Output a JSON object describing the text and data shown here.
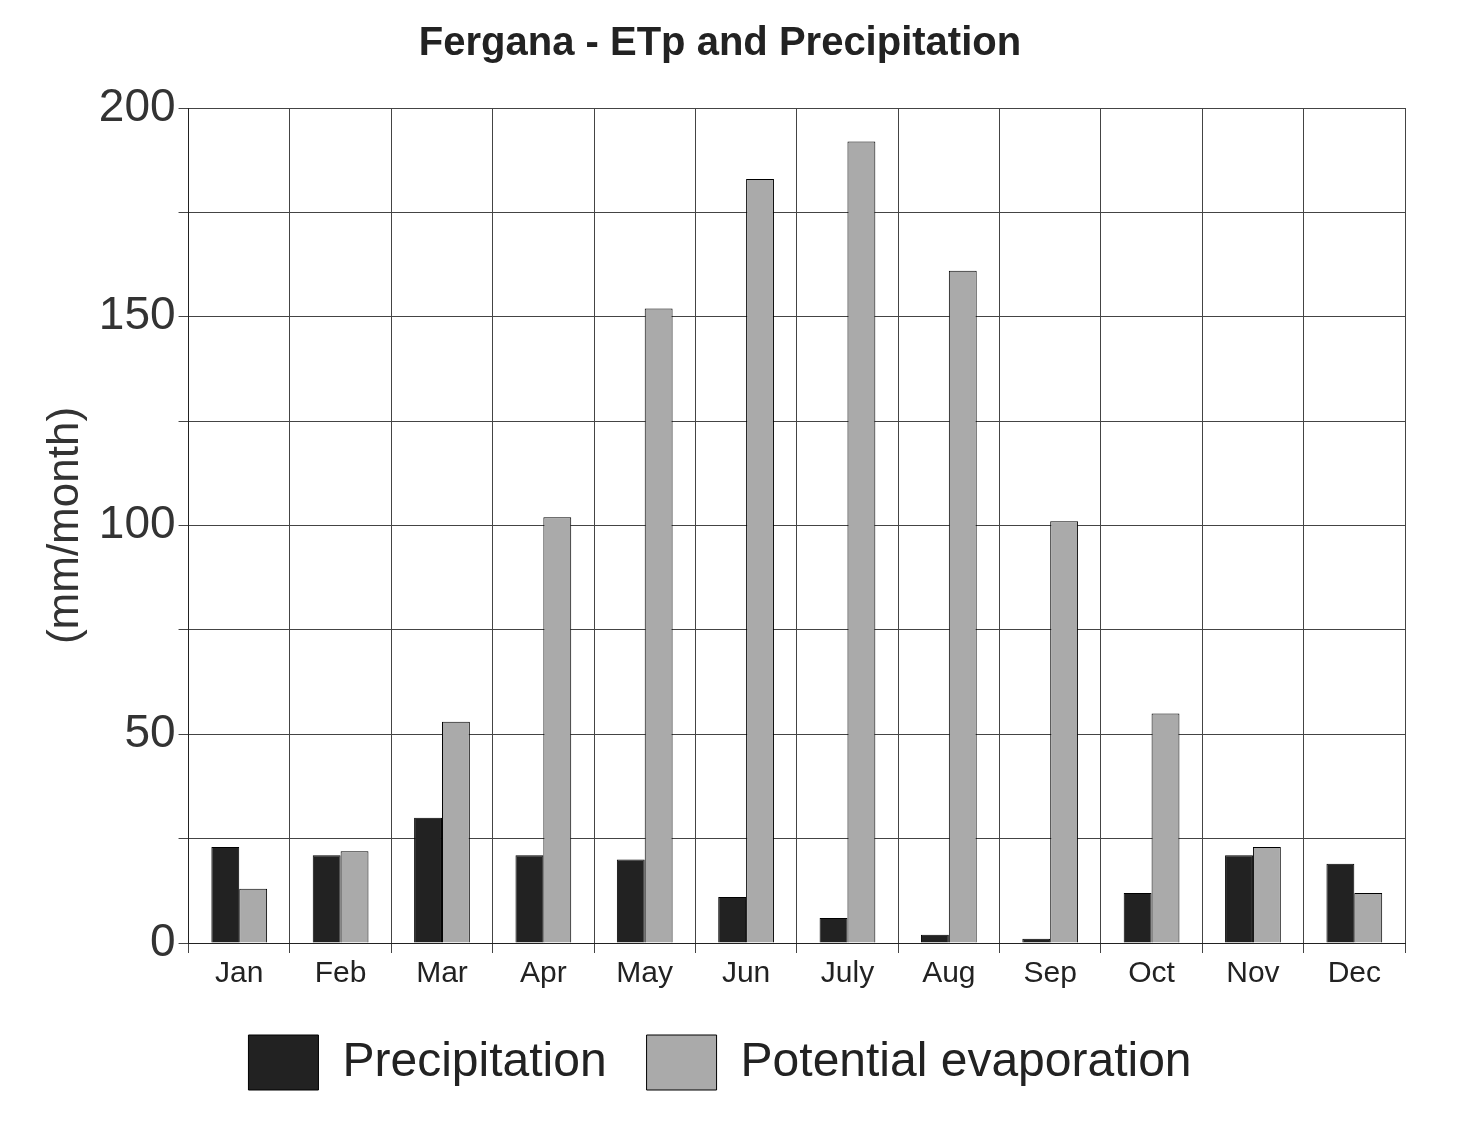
{
  "chart_data": {
    "type": "bar",
    "title": "Fergana - ETp and Precipitation",
    "ylabel": "(mm/month)",
    "categories": [
      "Jan",
      "Feb",
      "Mar",
      "Apr",
      "May",
      "Jun",
      "July",
      "Aug",
      "Sep",
      "Oct",
      "Nov",
      "Dec"
    ],
    "series": [
      {
        "name": "Precipitation",
        "color": "#222222",
        "values": [
          23,
          21,
          30,
          21,
          20,
          11,
          6,
          2,
          1,
          12,
          21,
          19
        ]
      },
      {
        "name": "Potential evaporation",
        "color": "#aaaaaa",
        "values": [
          13,
          22,
          53,
          102,
          152,
          183,
          192,
          161,
          101,
          55,
          23,
          12
        ]
      }
    ],
    "ylim": [
      0,
      200
    ],
    "yticks": [
      0,
      {
        "value": 25,
        "label": null
      },
      50,
      {
        "value": 75,
        "label": null
      },
      100,
      {
        "value": 125,
        "label": null
      },
      150,
      {
        "value": 175,
        "label": null
      },
      200
    ],
    "grid": true,
    "legend": "bottom"
  }
}
